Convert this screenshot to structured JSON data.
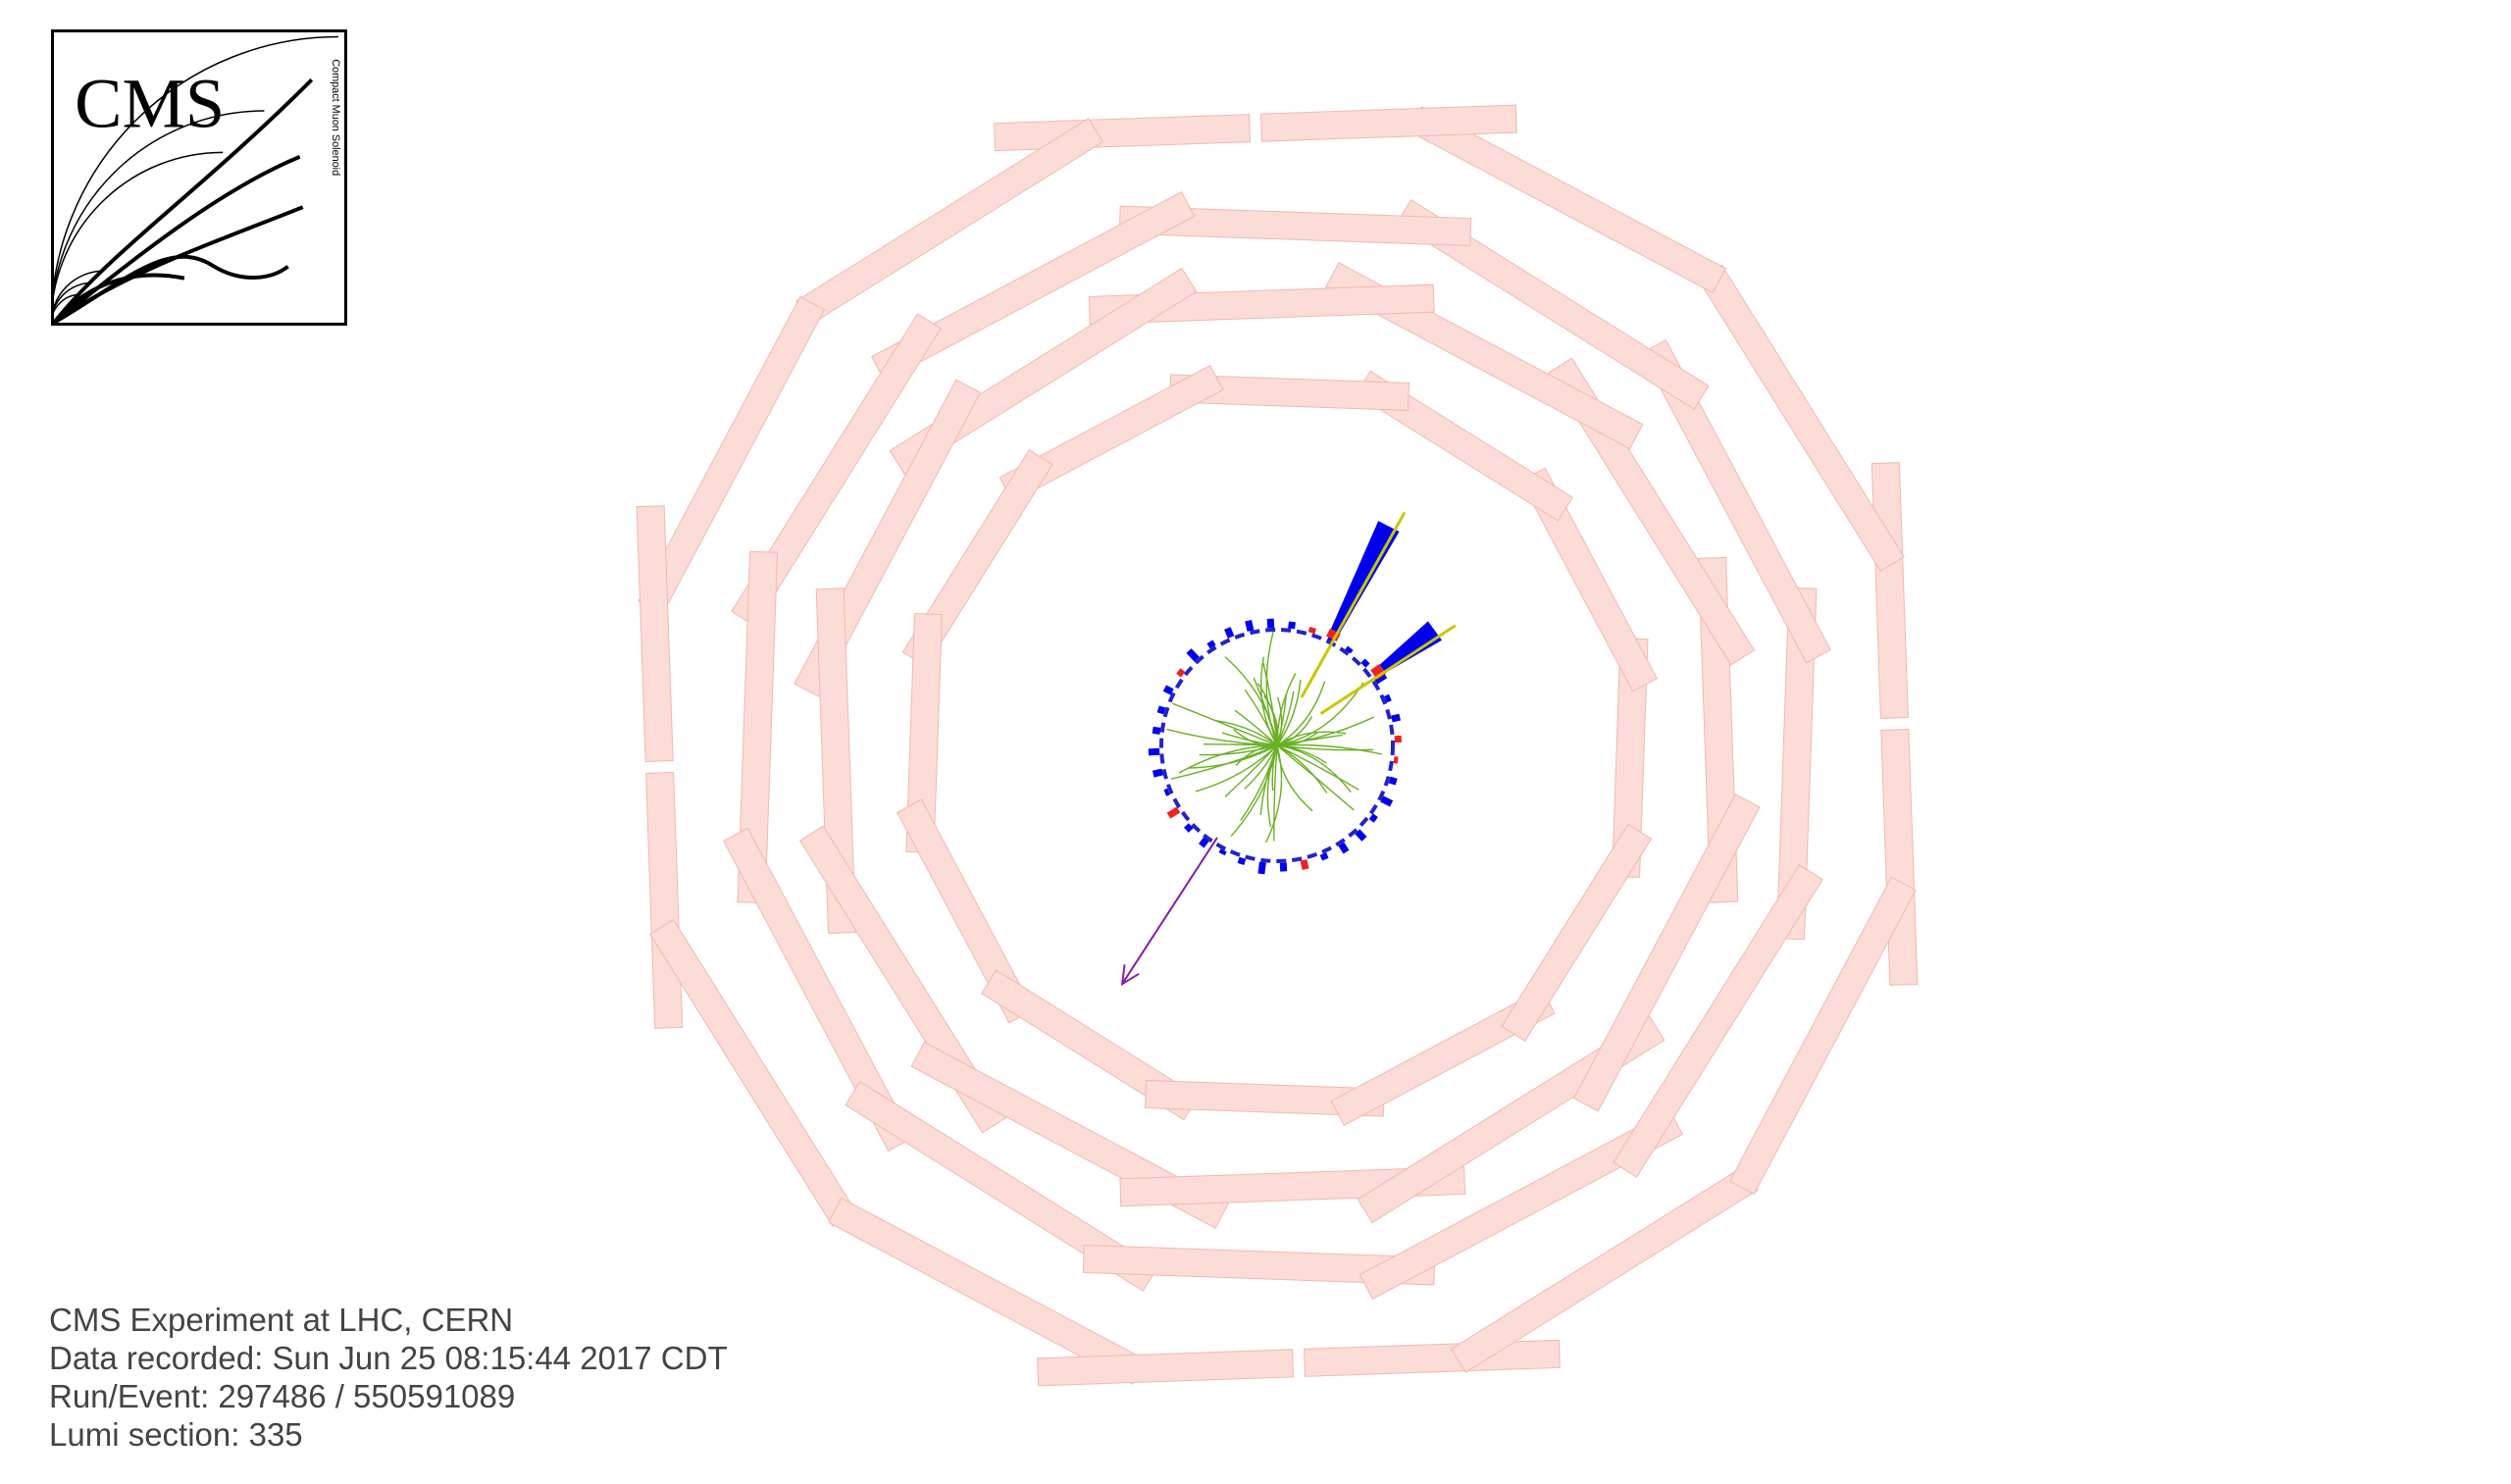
{
  "logo": {
    "title": "CMS",
    "subtitle": "Compact Muon Solenoid"
  },
  "event_info": {
    "experiment": "CMS Experiment at LHC, CERN",
    "recorded": "Data recorded: Sun Jun 25 08:15:44 2017 CDT",
    "run_event": "Run/Event: 297486 / 550591089",
    "lumi": "Lumi section: 335"
  },
  "colors": {
    "muon_chamber_fill": "#fcdcd6",
    "muon_chamber_stroke": "#f2b8ae",
    "track": "#6ab023",
    "jet": "#c8c800",
    "hcal": "#0000ee",
    "ecal": "#ee2222",
    "met": "#8a1aa8",
    "tracker_outline": "#2222cc"
  },
  "event": {
    "jets": [
      {
        "phi_deg": 63,
        "hcal_energy": 1.0,
        "ecal_energy": 0.2
      },
      {
        "phi_deg": 36,
        "hcal_energy": 0.55,
        "ecal_energy": 0.35
      }
    ],
    "missing_et": {
      "phi_deg": 237,
      "magnitude": 1.0
    },
    "track_count": 50
  }
}
